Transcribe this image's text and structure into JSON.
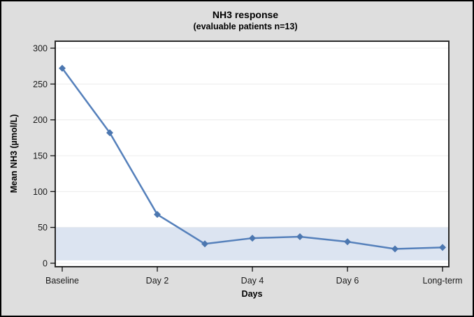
{
  "canvas": {
    "background": "#dedede",
    "plot_background": "#ffffff",
    "outer_border": "#000000"
  },
  "chart_data": {
    "type": "line",
    "title": "NH3 response",
    "subtitle": "(evaluable patients n=13)",
    "xlabel": "Days",
    "ylabel": "Mean NH3 (µmol/L)",
    "x": [
      0,
      1,
      2,
      3,
      4,
      5,
      6,
      7,
      8
    ],
    "values": [
      272,
      182,
      68,
      27,
      35,
      37,
      30,
      20,
      22
    ],
    "marker": "diamond",
    "xticks": {
      "positions": [
        0,
        2,
        4,
        6,
        8
      ],
      "labels": [
        "Baseline",
        "Day 2",
        "Day 4",
        "Day 6",
        "Long-term"
      ]
    },
    "yticks": [
      0,
      50,
      100,
      150,
      200,
      250,
      300
    ],
    "ylim": [
      0,
      300
    ],
    "grid": "horizontal",
    "legend": "none",
    "reference_band": {
      "from": 4,
      "to": 50,
      "color": "#dce4f1"
    },
    "colors": {
      "line": "#5580bb",
      "marker": "#4c77b0",
      "grid": "#ececec",
      "frame": "#2b2b2b",
      "tick": "#000000",
      "tick_label": "#1a1a1a"
    }
  }
}
